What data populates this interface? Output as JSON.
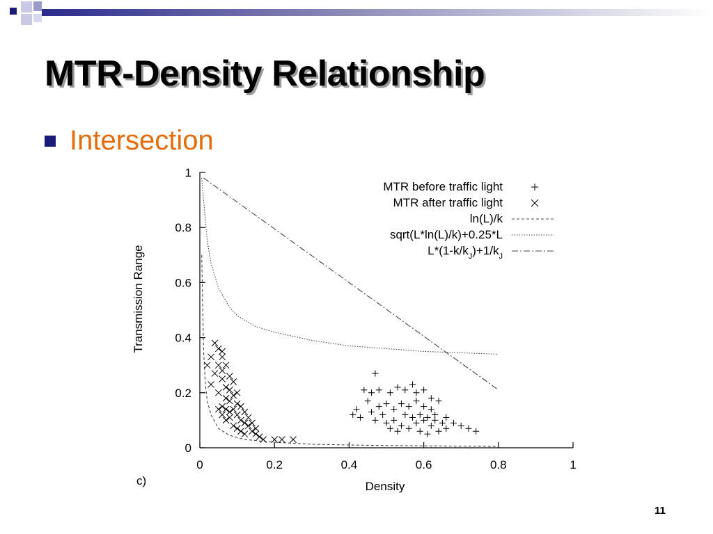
{
  "slide": {
    "title": "MTR-Density Relationship",
    "bullet": "Intersection",
    "page_number": "11",
    "colors": {
      "bullet_text": "#e46c0a",
      "bullet_marker": "#1a1a78",
      "deco_blue": "#2b2b8c"
    }
  },
  "chart_data": {
    "type": "scatter",
    "title": "",
    "panel_label": "c)",
    "xlabel": "Density",
    "ylabel": "Transmission Range",
    "xlim": [
      0,
      1
    ],
    "ylim": [
      0,
      1
    ],
    "xticks": [
      "0",
      "0.2",
      "0.4",
      "0.6",
      "0.8",
      "1"
    ],
    "yticks": [
      "0",
      "0.2",
      "0.4",
      "0.6",
      "0.8",
      "1"
    ],
    "grid": false,
    "legend_position": "top-right",
    "scatter_series": [
      {
        "name": "MTR before traffic light",
        "marker": "plus",
        "points": [
          [
            0.47,
            0.27
          ],
          [
            0.44,
            0.21
          ],
          [
            0.46,
            0.2
          ],
          [
            0.48,
            0.21
          ],
          [
            0.51,
            0.2
          ],
          [
            0.53,
            0.22
          ],
          [
            0.55,
            0.21
          ],
          [
            0.57,
            0.23
          ],
          [
            0.58,
            0.2
          ],
          [
            0.6,
            0.21
          ],
          [
            0.62,
            0.18
          ],
          [
            0.64,
            0.17
          ],
          [
            0.45,
            0.17
          ],
          [
            0.42,
            0.14
          ],
          [
            0.41,
            0.12
          ],
          [
            0.43,
            0.11
          ],
          [
            0.46,
            0.13
          ],
          [
            0.48,
            0.15
          ],
          [
            0.5,
            0.16
          ],
          [
            0.52,
            0.14
          ],
          [
            0.54,
            0.16
          ],
          [
            0.56,
            0.15
          ],
          [
            0.58,
            0.17
          ],
          [
            0.6,
            0.15
          ],
          [
            0.62,
            0.14
          ],
          [
            0.63,
            0.12
          ],
          [
            0.66,
            0.11
          ],
          [
            0.68,
            0.09
          ],
          [
            0.7,
            0.08
          ],
          [
            0.72,
            0.07
          ],
          [
            0.5,
            0.09
          ],
          [
            0.52,
            0.1
          ],
          [
            0.54,
            0.08
          ],
          [
            0.56,
            0.07
          ],
          [
            0.58,
            0.09
          ],
          [
            0.6,
            0.1
          ],
          [
            0.62,
            0.08
          ],
          [
            0.64,
            0.06
          ],
          [
            0.66,
            0.07
          ],
          [
            0.55,
            0.12
          ],
          [
            0.57,
            0.11
          ],
          [
            0.59,
            0.12
          ],
          [
            0.61,
            0.11
          ],
          [
            0.63,
            0.1
          ],
          [
            0.49,
            0.12
          ],
          [
            0.51,
            0.07
          ],
          [
            0.53,
            0.06
          ],
          [
            0.59,
            0.06
          ],
          [
            0.61,
            0.05
          ],
          [
            0.65,
            0.09
          ],
          [
            0.74,
            0.06
          ],
          [
            0.47,
            0.1
          ]
        ]
      },
      {
        "name": "MTR after traffic light",
        "marker": "cross",
        "points": [
          [
            0.04,
            0.38
          ],
          [
            0.05,
            0.36
          ],
          [
            0.06,
            0.35
          ],
          [
            0.06,
            0.33
          ],
          [
            0.05,
            0.3
          ],
          [
            0.04,
            0.27
          ],
          [
            0.03,
            0.23
          ],
          [
            0.05,
            0.2
          ],
          [
            0.06,
            0.25
          ],
          [
            0.07,
            0.22
          ],
          [
            0.07,
            0.18
          ],
          [
            0.06,
            0.15
          ],
          [
            0.08,
            0.21
          ],
          [
            0.08,
            0.17
          ],
          [
            0.09,
            0.14
          ],
          [
            0.09,
            0.19
          ],
          [
            0.1,
            0.16
          ],
          [
            0.1,
            0.12
          ],
          [
            0.11,
            0.15
          ],
          [
            0.11,
            0.1
          ],
          [
            0.12,
            0.13
          ],
          [
            0.12,
            0.09
          ],
          [
            0.13,
            0.08
          ],
          [
            0.14,
            0.06
          ],
          [
            0.15,
            0.05
          ],
          [
            0.16,
            0.04
          ],
          [
            0.17,
            0.03
          ],
          [
            0.2,
            0.03
          ],
          [
            0.22,
            0.03
          ],
          [
            0.25,
            0.03
          ],
          [
            0.02,
            0.3
          ],
          [
            0.03,
            0.33
          ],
          [
            0.07,
            0.3
          ],
          [
            0.08,
            0.26
          ],
          [
            0.09,
            0.24
          ],
          [
            0.1,
            0.2
          ],
          [
            0.05,
            0.14
          ],
          [
            0.06,
            0.12
          ],
          [
            0.07,
            0.1
          ],
          [
            0.08,
            0.11
          ],
          [
            0.09,
            0.08
          ],
          [
            0.1,
            0.07
          ],
          [
            0.11,
            0.06
          ],
          [
            0.13,
            0.11
          ],
          [
            0.14,
            0.09
          ],
          [
            0.06,
            0.28
          ],
          [
            0.07,
            0.14
          ],
          [
            0.08,
            0.13
          ],
          [
            0.12,
            0.05
          ],
          [
            0.15,
            0.07
          ]
        ]
      }
    ],
    "curves": [
      {
        "name": "ln(L)/k",
        "style": "dashed",
        "x": [
          0.005,
          0.01,
          0.015,
          0.02,
          0.03,
          0.05,
          0.08,
          0.12,
          0.2,
          0.3,
          0.4,
          0.5,
          0.6,
          0.7,
          0.8
        ],
        "y": [
          0.7,
          0.35,
          0.23,
          0.17,
          0.12,
          0.07,
          0.045,
          0.03,
          0.02,
          0.013,
          0.01,
          0.008,
          0.007,
          0.006,
          0.005
        ]
      },
      {
        "name": "sqrt(L*ln(L)/k)+0.25*L",
        "style": "dotted",
        "x": [
          0.005,
          0.01,
          0.02,
          0.03,
          0.05,
          0.08,
          0.1,
          0.15,
          0.2,
          0.3,
          0.4,
          0.5,
          0.6,
          0.7,
          0.8
        ],
        "y": [
          0.98,
          0.9,
          0.75,
          0.67,
          0.58,
          0.51,
          0.48,
          0.44,
          0.42,
          0.39,
          0.37,
          0.36,
          0.35,
          0.345,
          0.34
        ]
      },
      {
        "name": "L*(1-k/kJ)+1/kJ",
        "style": "dash-dot",
        "x": [
          0.01,
          0.8
        ],
        "y": [
          0.98,
          0.21
        ]
      }
    ],
    "legend_labels": [
      {
        "prefix": "MTR before traffic light"
      },
      {
        "prefix": "MTR after traffic light"
      },
      {
        "prefix": "ln(L)/k"
      },
      {
        "prefix": "sqrt(L*ln(L)/k)+0.25*L"
      },
      {
        "prefix": "L*(1-k/k",
        "sub1": "J",
        "mid": ")+1/k",
        "sub2": "J"
      }
    ]
  }
}
